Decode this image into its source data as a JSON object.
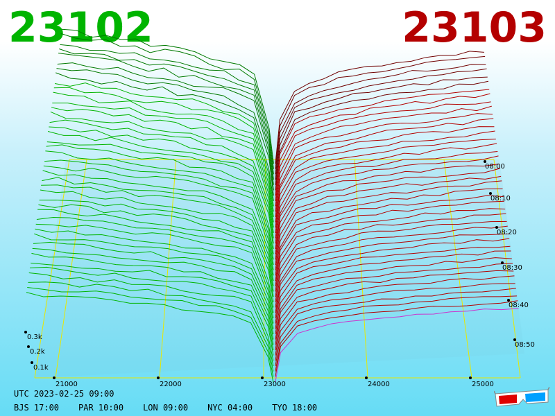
{
  "header": {
    "bid_price": "23102",
    "ask_price": "23103",
    "bid_color": "#00b400",
    "ask_color": "#b40000"
  },
  "clock": {
    "utc": "UTC 2023-02-25 09:00",
    "zones": [
      "BJS 17:00",
      "PAR 10:00",
      "LON 09:00",
      "NYC 04:00",
      "TYO 18:00"
    ]
  },
  "icons": {
    "anaglyph": "3d-glasses-icon"
  },
  "chart_data": {
    "type": "area",
    "title": "",
    "description_kind": "3D order-book depth chart over time",
    "x_axis": {
      "label": "",
      "ticks": [
        21000,
        22000,
        23000,
        24000,
        25000
      ],
      "range": [
        20700,
        25450
      ]
    },
    "y_axis": {
      "label": "",
      "ticks": [
        "0.1k",
        "0.2k",
        "0.3k"
      ],
      "range": [
        0,
        0.35
      ]
    },
    "z_axis": {
      "label": "",
      "ticks": [
        "08:00",
        "08:10",
        "08:20",
        "08:30",
        "08:40",
        "08:50"
      ]
    },
    "mid_price": 23102.5,
    "series": [
      {
        "side": "bid",
        "color": "#00b400",
        "depth_level_k": 0.31
      },
      {
        "side": "ask",
        "color": "#b40000",
        "depth_level_k": 0.26
      }
    ],
    "grid": true,
    "grid_color": "#e8e800"
  }
}
